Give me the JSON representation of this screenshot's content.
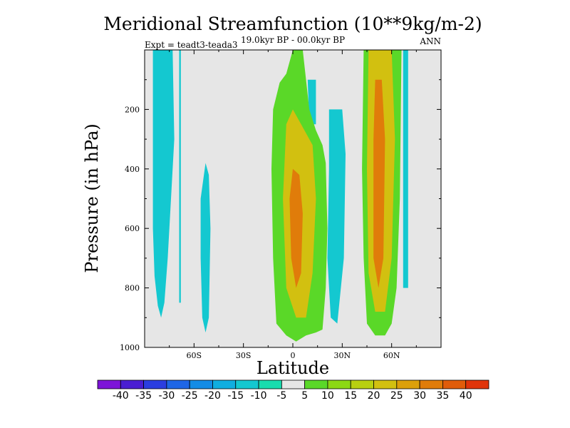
{
  "chart_data": {
    "type": "contour",
    "title": "Meridional Streamfunction (10**9kg/m-2)",
    "subtitle": "19.0kyr BP - 00.0kyr BP",
    "experiment_label": "Expt = teadt3-teada3",
    "season": "ANN",
    "xlabel": "Latitude",
    "ylabel": "Pressure (in hPa)",
    "x_ticks": [
      "60S",
      "30S",
      "0",
      "30N",
      "60N"
    ],
    "x_tick_values": [
      -60,
      -30,
      0,
      30,
      60
    ],
    "xlim": [
      -90,
      90
    ],
    "y_ticks": [
      "200",
      "400",
      "600",
      "800",
      "1000"
    ],
    "y_tick_values": [
      200,
      400,
      600,
      800,
      1000
    ],
    "ylim": [
      0,
      1000
    ],
    "y_reversed": true,
    "levels": [
      -40,
      -35,
      -30,
      -25,
      -20,
      -15,
      -10,
      -5,
      5,
      10,
      15,
      20,
      25,
      30,
      35,
      40
    ],
    "colors": [
      "#7d14d8",
      "#4a1ed2",
      "#2b3ee0",
      "#1e66e6",
      "#138ce6",
      "#10aee0",
      "#14c8d0",
      "#18dcae",
      "#e6e6e6",
      "#5ad828",
      "#8cd814",
      "#b8d010",
      "#d2c010",
      "#dca00a",
      "#e07c0a",
      "#e05c0a",
      "#e0340a"
    ],
    "regions": [
      {
        "level": -10,
        "lat": [
          -85,
          -84,
          -83,
          -80,
          -76,
          -73,
          -72,
          -74,
          -76,
          -78,
          -80,
          -82,
          -84,
          -85,
          -85
        ],
        "p": [
          0,
          0,
          0,
          0,
          0,
          0,
          300,
          500,
          700,
          850,
          900,
          860,
          760,
          600,
          0
        ]
      },
      {
        "level": -10,
        "lat": [
          -69,
          -68,
          -68,
          -69
        ],
        "p": [
          0,
          0,
          850,
          850
        ]
      },
      {
        "level": -10,
        "lat": [
          -56,
          -53,
          -51,
          -50,
          -51,
          -53,
          -55,
          -56
        ],
        "p": [
          500,
          380,
          420,
          600,
          900,
          950,
          900,
          700
        ]
      },
      {
        "level": -10,
        "lat": [
          9,
          14,
          14,
          10,
          9
        ],
        "p": [
          100,
          100,
          250,
          250,
          100
        ]
      },
      {
        "level": -10,
        "lat": [
          22,
          30,
          32,
          31,
          27,
          23,
          21,
          22
        ],
        "p": [
          200,
          200,
          350,
          700,
          920,
          900,
          700,
          400
        ]
      },
      {
        "level": -10,
        "lat": [
          67,
          70,
          70,
          67
        ],
        "p": [
          0,
          0,
          800,
          800
        ]
      },
      {
        "level": 5,
        "lat": [
          -12,
          -8,
          -4,
          0,
          2,
          6,
          10,
          14,
          18,
          20,
          21,
          20,
          18,
          14,
          8,
          2,
          -4,
          -10,
          -12,
          -13,
          -12
        ],
        "p": [
          200,
          110,
          80,
          0,
          0,
          0,
          200,
          270,
          320,
          380,
          600,
          800,
          940,
          950,
          960,
          980,
          960,
          920,
          700,
          400,
          200
        ]
      },
      {
        "level": 5,
        "lat": [
          43,
          46,
          50,
          56,
          60,
          62,
          64,
          66,
          65,
          63,
          60,
          56,
          50,
          45,
          43,
          42,
          43
        ],
        "p": [
          0,
          0,
          0,
          0,
          0,
          0,
          0,
          0,
          500,
          800,
          920,
          960,
          960,
          920,
          700,
          400,
          0
        ]
      },
      {
        "level": 20,
        "lat": [
          -4,
          0,
          6,
          12,
          14,
          12,
          8,
          2,
          -4,
          -6,
          -4
        ],
        "p": [
          250,
          200,
          260,
          320,
          500,
          750,
          900,
          900,
          800,
          500,
          250
        ]
      },
      {
        "level": 20,
        "lat": [
          46,
          50,
          56,
          60,
          62,
          60,
          56,
          50,
          46,
          45,
          46
        ],
        "p": [
          0,
          0,
          0,
          0,
          300,
          700,
          880,
          880,
          750,
          400,
          0
        ]
      },
      {
        "level": 30,
        "lat": [
          0,
          4,
          6,
          5,
          2,
          -1,
          -2,
          0
        ],
        "p": [
          400,
          420,
          550,
          750,
          800,
          700,
          500,
          400
        ]
      },
      {
        "level": 30,
        "lat": [
          50,
          54,
          56,
          55,
          52,
          49,
          49,
          50
        ],
        "p": [
          100,
          100,
          300,
          700,
          800,
          700,
          300,
          100
        ]
      }
    ]
  },
  "colorbar": {
    "labels": [
      "-40",
      "-35",
      "-30",
      "-25",
      "-20",
      "-15",
      "-10",
      "-5",
      "5",
      "10",
      "15",
      "20",
      "25",
      "30",
      "35",
      "40"
    ]
  }
}
